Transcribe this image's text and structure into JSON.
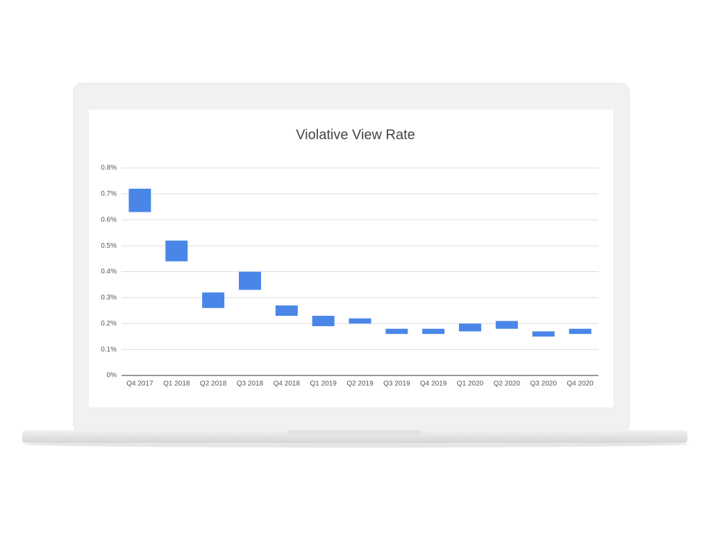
{
  "chart_data": {
    "type": "range-bar",
    "title": "Violative View Rate",
    "categories": [
      "Q4 2017",
      "Q1 2018",
      "Q2 2018",
      "Q3 2018",
      "Q4 2018",
      "Q1 2019",
      "Q2 2019",
      "Q3 2019",
      "Q4 2019",
      "Q1 2020",
      "Q2 2020",
      "Q3 2020",
      "Q4 2020"
    ],
    "values": [
      [
        0.63,
        0.72
      ],
      [
        0.44,
        0.52
      ],
      [
        0.26,
        0.32
      ],
      [
        0.33,
        0.4
      ],
      [
        0.23,
        0.27
      ],
      [
        0.19,
        0.23
      ],
      [
        0.2,
        0.22
      ],
      [
        0.16,
        0.18
      ],
      [
        0.16,
        0.18
      ],
      [
        0.17,
        0.2
      ],
      [
        0.18,
        0.21
      ],
      [
        0.15,
        0.17
      ],
      [
        0.16,
        0.18
      ]
    ],
    "color": "#4a86e8",
    "ylim": [
      0,
      0.8
    ],
    "yticks": [
      {
        "value": 0,
        "label": "0%"
      },
      {
        "value": 0.1,
        "label": "0.1%"
      },
      {
        "value": 0.2,
        "label": "0.2%"
      },
      {
        "value": 0.3,
        "label": "0.3%"
      },
      {
        "value": 0.4,
        "label": "0.4%"
      },
      {
        "value": 0.5,
        "label": "0.5%"
      },
      {
        "value": 0.6,
        "label": "0.6%"
      },
      {
        "value": 0.7,
        "label": "0.7%"
      },
      {
        "value": 0.8,
        "label": "0.8%"
      }
    ],
    "grid": true
  }
}
